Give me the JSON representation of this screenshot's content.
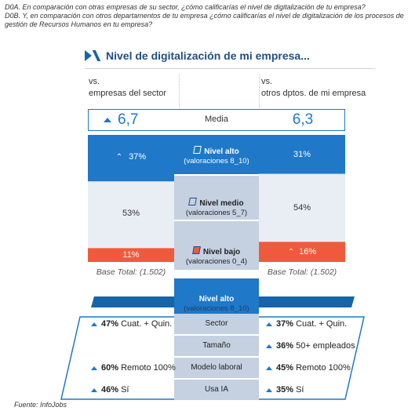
{
  "question": {
    "line1": "D0A. En comparación con otras empresas de su sector, ¿cómo calificarías el nivel de digitalización de tu empresa?",
    "line2": "D0B. Y, en comparación con otros departamentos de tu empresa ¿cómo calificarías el nivel de digitalización de los procesos de gestión de Recursos Humanos en tu empresa?"
  },
  "title": "Nivel de digitalización de mi empresa...",
  "left_header": {
    "line1": "vs.",
    "line2": "empresas del sector"
  },
  "right_header": {
    "line1": "vs.",
    "line2": "otros dptos. de mi empresa"
  },
  "media": {
    "label": "Media",
    "left": "6,7",
    "right": "6,3"
  },
  "levels": {
    "alto": {
      "name": "Nivel alto",
      "range": "(valoraciones 8_10)"
    },
    "medio": {
      "name": "Nivel medio",
      "range": "(valoraciones 5_7)"
    },
    "bajo": {
      "name": "Nivel bajo",
      "range": "(valoraciones 0_4)"
    }
  },
  "colors": {
    "alto": "#1f78c8",
    "medio": "#e9eef5",
    "bajo": "#f05a3c",
    "mid_alto": "#1f78c8",
    "mid_other": "#c5d1e1"
  },
  "chart_data": {
    "type": "bar",
    "categories": [
      "vs. empresas del sector",
      "vs. otros dptos. de mi empresa"
    ],
    "series": [
      {
        "name": "Nivel alto",
        "values": [
          37,
          31
        ]
      },
      {
        "name": "Nivel medio",
        "values": [
          53,
          54
        ]
      },
      {
        "name": "Nivel bajo",
        "values": [
          11,
          16
        ]
      }
    ],
    "labels": {
      "left": [
        "37%",
        "53%",
        "11%"
      ],
      "right": [
        "31%",
        "54%",
        "16%"
      ]
    },
    "ylim": [
      0,
      100
    ]
  },
  "base": {
    "left": "Base Total: (1.502)",
    "right": "Base Total: (1.502)"
  },
  "detail": {
    "header_name": "Nivel alto",
    "header_range": "(valoraciones 8_10)",
    "rows": [
      {
        "label": "Sector",
        "left_pct": "47%",
        "left_text": "Cuat. + Quin.",
        "right_pct": "37%",
        "right_text": "Cuat. + Quin."
      },
      {
        "label": "Tamaño",
        "left_pct": "",
        "left_text": "",
        "right_pct": "36%",
        "right_text": "50+ empleados"
      },
      {
        "label": "Modelo laboral",
        "left_pct": "60%",
        "left_text": "Remoto 100%",
        "right_pct": "45%",
        "right_text": "Remoto 100%"
      },
      {
        "label": "Usa IA",
        "left_pct": "46%",
        "left_text": "Sí",
        "right_pct": "35%",
        "right_text": "Sí"
      }
    ]
  },
  "footer": "Fuente: InfoJobs"
}
